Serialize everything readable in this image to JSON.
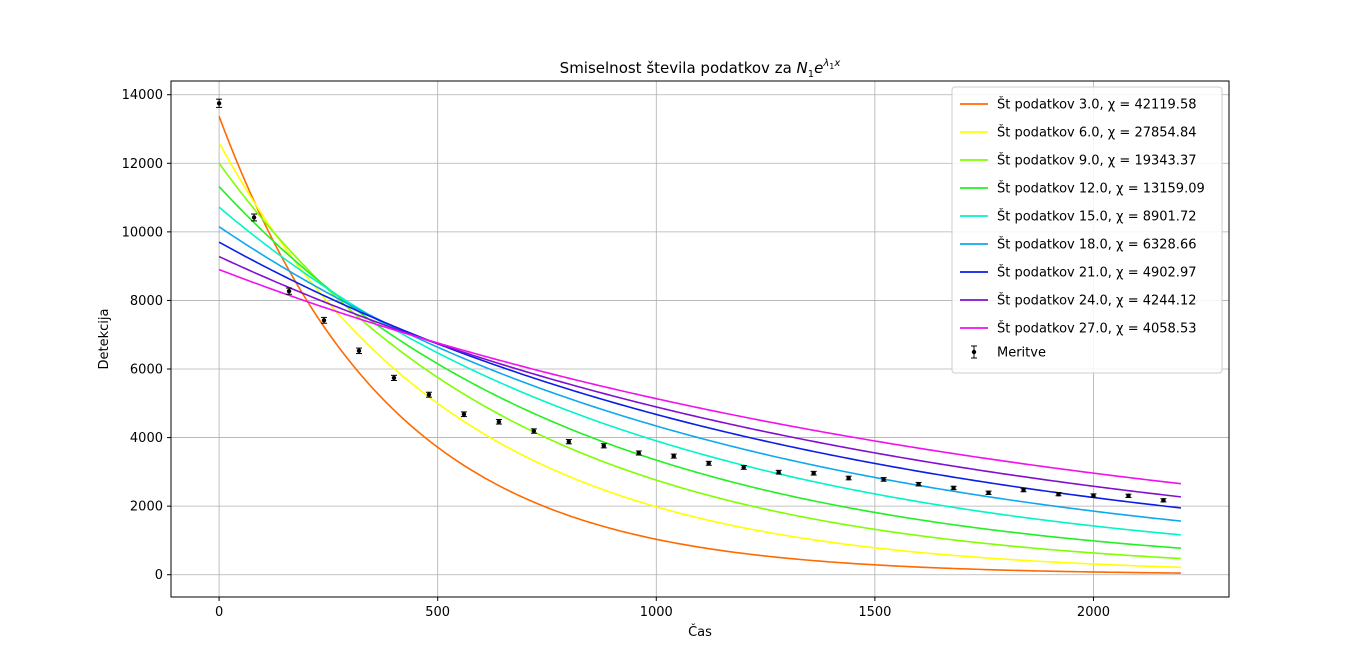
{
  "chart_data": {
    "type": "line",
    "title": "Smiselnost števila podatkov za N₁e^(λ₁x)",
    "xlabel": "Čas",
    "ylabel": "Detekcija",
    "xlim": [
      -110,
      2310
    ],
    "ylim": [
      -650,
      14400
    ],
    "x_ticks": [
      0,
      500,
      1000,
      1500,
      2000
    ],
    "y_ticks": [
      0,
      2000,
      4000,
      6000,
      8000,
      10000,
      12000,
      14000
    ],
    "grid": true,
    "legend_position": "top-right",
    "curve_x_range": [
      0,
      2200
    ],
    "series": [
      {
        "name": "Št podatkov 3.0, χ = 42119.58",
        "color": "#ff6a00",
        "N": 13370,
        "lambda": -0.00256
      },
      {
        "name": "Št podatkov 6.0, χ = 27854.84",
        "color": "#ffff00",
        "N": 12600,
        "lambda": -0.00185
      },
      {
        "name": "Št podatkov 9.0, χ = 19343.37",
        "color": "#7fff00",
        "N": 12000,
        "lambda": -0.00147
      },
      {
        "name": "Št podatkov 12.0, χ = 13159.09",
        "color": "#22f022",
        "N": 11320,
        "lambda": -0.00122
      },
      {
        "name": "Št podatkov 15.0, χ = 8901.72",
        "color": "#00f5c8",
        "N": 10720,
        "lambda": -0.00101
      },
      {
        "name": "Št podatkov 18.0, χ = 6328.66",
        "color": "#0ea8f0",
        "N": 10150,
        "lambda": -0.00085
      },
      {
        "name": "Št podatkov 21.0, χ = 4902.97",
        "color": "#0a1ee6",
        "N": 9700,
        "lambda": -0.00073
      },
      {
        "name": "Št podatkov 24.0, χ = 4244.12",
        "color": "#8010d0",
        "N": 9280,
        "lambda": -0.00064
      },
      {
        "name": "Št podatkov 27.0, χ = 4058.53",
        "color": "#f010f0",
        "N": 8900,
        "lambda": -0.00055
      }
    ],
    "measurements": {
      "name": "Meritve",
      "x": [
        0,
        80,
        160,
        240,
        320,
        400,
        480,
        560,
        640,
        720,
        800,
        880,
        960,
        1040,
        1120,
        1200,
        1280,
        1360,
        1440,
        1520,
        1600,
        1680,
        1760,
        1840,
        1920,
        2000,
        2080,
        2160
      ],
      "y": [
        13750,
        10420,
        8270,
        7420,
        6530,
        5740,
        5250,
        4680,
        4460,
        4190,
        3880,
        3760,
        3550,
        3460,
        3250,
        3130,
        2990,
        2960,
        2820,
        2780,
        2640,
        2530,
        2390,
        2470,
        2350,
        2310,
        2300,
        2170
      ],
      "error": [
        120,
        100,
        90,
        85,
        80,
        75,
        72,
        68,
        66,
        64,
        62,
        61,
        59,
        59,
        57,
        56,
        55,
        54,
        53,
        53,
        51,
        50,
        49,
        50,
        48,
        48,
        48,
        47
      ]
    }
  }
}
